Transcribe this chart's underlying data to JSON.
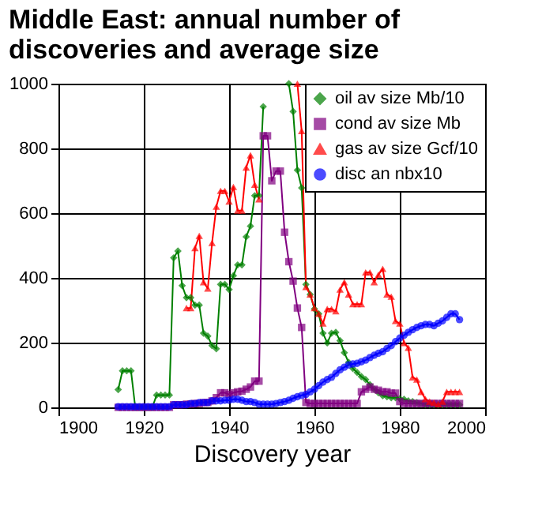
{
  "chart_data": {
    "type": "line",
    "title": "Middle East: annual number of\n discoveries and average size",
    "xlabel": "Discovery year",
    "xlim": [
      1900,
      2000
    ],
    "xticks": [
      1900,
      1920,
      1940,
      1960,
      1980,
      2000
    ],
    "ylim": [
      0,
      1000
    ],
    "yticks": [
      0,
      200,
      400,
      600,
      800,
      1000
    ],
    "grid": true,
    "legend": "top right",
    "x": [
      1914,
      1915,
      1916,
      1917,
      1918,
      1919,
      1920,
      1921,
      1922,
      1923,
      1924,
      1925,
      1926,
      1927,
      1928,
      1929,
      1930,
      1931,
      1932,
      1933,
      1934,
      1935,
      1936,
      1937,
      1938,
      1939,
      1940,
      1941,
      1942,
      1943,
      1944,
      1945,
      1946,
      1947,
      1948,
      1949,
      1950,
      1951,
      1952,
      1953,
      1954,
      1955,
      1956,
      1957,
      1958,
      1959,
      1960,
      1961,
      1962,
      1963,
      1964,
      1965,
      1966,
      1967,
      1968,
      1969,
      1970,
      1971,
      1972,
      1973,
      1974,
      1975,
      1976,
      1977,
      1978,
      1979,
      1980,
      1981,
      1982,
      1983,
      1984,
      1985,
      1986,
      1987,
      1988,
      1989,
      1990,
      1991,
      1992,
      1993,
      1994
    ],
    "series": [
      {
        "name": "oil av size Mb/10",
        "color": "#008000",
        "marker": "diamond",
        "values": [
          55,
          113,
          113,
          113,
          0,
          0,
          0,
          0,
          0,
          38,
          38,
          38,
          38,
          462,
          483,
          376,
          339,
          339,
          316,
          316,
          229,
          220,
          191,
          181,
          380,
          380,
          364,
          407,
          440,
          440,
          527,
          560,
          654,
          654,
          929,
          null,
          null,
          null,
          null,
          null,
          1000,
          914,
          733,
          678,
          380,
          349,
          304,
          289,
          229,
          199,
          229,
          232,
          206,
          169,
          139,
          120,
          108,
          95,
          86,
          70,
          56,
          45,
          36,
          33,
          30,
          30,
          27,
          25,
          20,
          18,
          15,
          12,
          8,
          8,
          8,
          8,
          8,
          8,
          8,
          8,
          8
        ]
      },
      {
        "name": "cond av size Mb",
        "color": "#800080",
        "marker": "square",
        "values": [
          0,
          0,
          0,
          0,
          0,
          0,
          0,
          0,
          0,
          0,
          0,
          0,
          0,
          8,
          8,
          8,
          10,
          10,
          12,
          12,
          15,
          15,
          20,
          30,
          45,
          45,
          40,
          45,
          48,
          50,
          56,
          63,
          81,
          81,
          839,
          839,
          700,
          730,
          730,
          541,
          450,
          390,
          307,
          247,
          15,
          12,
          12,
          12,
          12,
          12,
          12,
          12,
          12,
          12,
          12,
          12,
          12,
          48,
          56,
          63,
          56,
          53,
          48,
          48,
          44,
          44,
          18,
          12,
          12,
          12,
          12,
          12,
          12,
          12,
          12,
          12,
          12,
          12,
          12,
          12,
          12
        ]
      },
      {
        "name": "gas av size Gcf/10",
        "color": "#ff0000",
        "marker": "triangle",
        "values": [
          null,
          null,
          null,
          null,
          null,
          null,
          null,
          null,
          null,
          null,
          null,
          null,
          null,
          null,
          null,
          null,
          307,
          307,
          492,
          530,
          387,
          367,
          508,
          620,
          669,
          669,
          636,
          681,
          608,
          608,
          741,
          779,
          688,
          643,
          null,
          null,
          null,
          null,
          null,
          null,
          null,
          null,
          1000,
          854,
          372,
          349,
          307,
          289,
          259,
          304,
          304,
          297,
          364,
          387,
          349,
          319,
          319,
          319,
          417,
          417,
          387,
          410,
          428,
          349,
          342,
          267,
          259,
          199,
          184,
          93,
          86,
          48,
          26,
          18,
          15,
          10,
          18,
          48,
          48,
          48,
          48
        ]
      },
      {
        "name": "disc an nbx10",
        "color": "#0000ff",
        "marker": "circle",
        "values": [
          2,
          2,
          2,
          2,
          2,
          2,
          2,
          2,
          2,
          2,
          2,
          2,
          2,
          8,
          8,
          8,
          8,
          12,
          12,
          15,
          15,
          15,
          20,
          20,
          20,
          22,
          22,
          25,
          25,
          22,
          18,
          18,
          15,
          10,
          10,
          10,
          10,
          12,
          15,
          18,
          22,
          28,
          33,
          37,
          40,
          48,
          56,
          67,
          78,
          86,
          93,
          105,
          116,
          124,
          131,
          134,
          136,
          141,
          146,
          154,
          161,
          167,
          172,
          182,
          191,
          203,
          214,
          223,
          232,
          240,
          247,
          252,
          256,
          256,
          252,
          260,
          267,
          278,
          289,
          289,
          271
        ]
      }
    ]
  }
}
